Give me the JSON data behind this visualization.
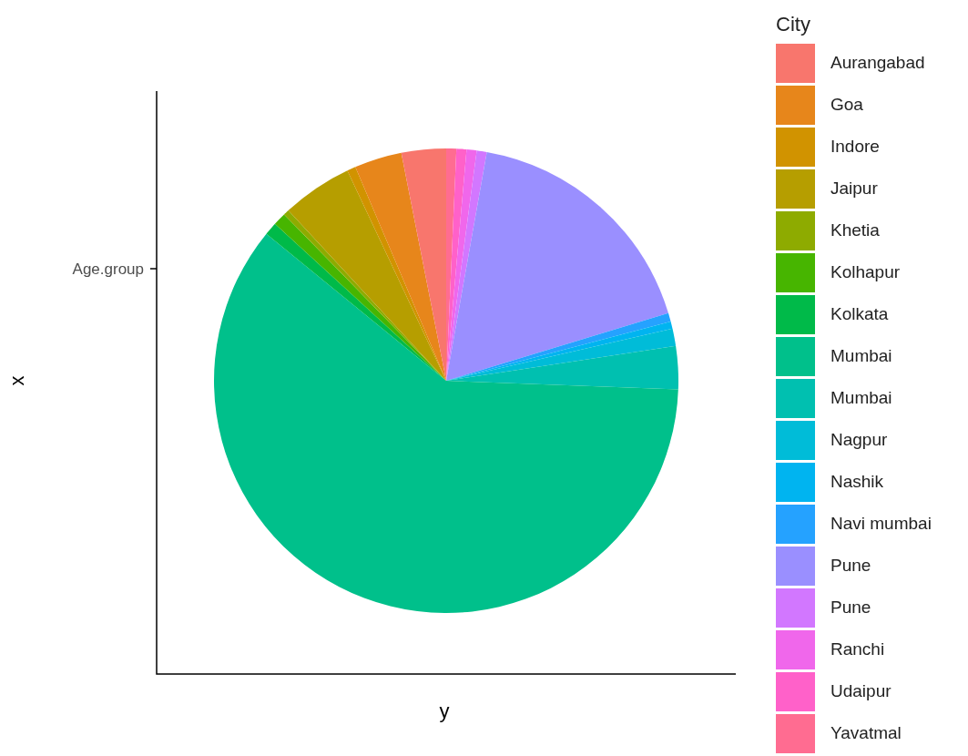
{
  "chart_data": {
    "type": "pie",
    "xlabel": "y",
    "ylabel": "x",
    "legend_title": "City",
    "legend": "right",
    "annotations": [
      "Age.group"
    ],
    "categories": [
      "Aurangabad",
      "Goa",
      "Indore",
      "Jaipur",
      "Khetia",
      "Kolhapur",
      "Kolkata",
      "Mumbai",
      "Mumbai",
      "Nagpur",
      "Nashik",
      "Navi mumbai",
      "Pune",
      "Pune",
      "Ranchi",
      "Udaipur",
      "Yavatmal"
    ],
    "values": [
      3.1,
      3.3,
      0.6,
      4.9,
      0.4,
      0.9,
      0.9,
      60.3,
      3.0,
      1.2,
      0.5,
      0.6,
      17.5,
      0.7,
      0.7,
      0.7,
      0.7
    ],
    "colors": [
      "#f8766d",
      "#e7861b",
      "#d19300",
      "#b69e00",
      "#8eab00",
      "#47b500",
      "#00ba49",
      "#00c08b",
      "#00c0b0",
      "#00bcd8",
      "#00b4f0",
      "#25a2ff",
      "#9a8fff",
      "#d277ff",
      "#f067eb",
      "#ff61c9",
      "#ff6c91"
    ]
  }
}
